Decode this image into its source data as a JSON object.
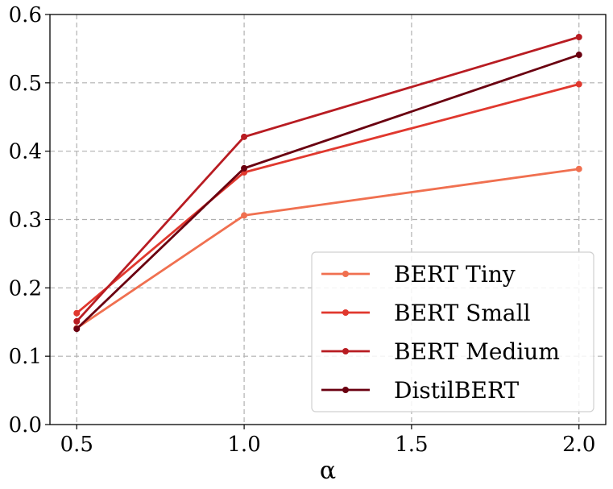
{
  "chart_data": {
    "type": "line",
    "title": "",
    "xlabel": "α",
    "ylabel": "",
    "x": [
      0.5,
      1.0,
      2.0
    ],
    "xlim": [
      0.42,
      2.08
    ],
    "ylim": [
      0.0,
      0.6
    ],
    "xticks": [
      0.5,
      1.0,
      1.5,
      2.0
    ],
    "xtick_labels": [
      "0.5",
      "1.0",
      "1.5",
      "2.0"
    ],
    "yticks": [
      0.0,
      0.1,
      0.2,
      0.3,
      0.4,
      0.5,
      0.6
    ],
    "ytick_labels": [
      "0.0",
      "0.1",
      "0.2",
      "0.3",
      "0.4",
      "0.5",
      "0.6"
    ],
    "grid": true,
    "legend_position": "lower-right",
    "series": [
      {
        "name": "BERT Tiny",
        "color": "#f07050",
        "values": [
          0.141,
          0.306,
          0.374
        ]
      },
      {
        "name": "BERT Small",
        "color": "#e0382e",
        "values": [
          0.163,
          0.369,
          0.498
        ]
      },
      {
        "name": "BERT Medium",
        "color": "#b81c22",
        "values": [
          0.151,
          0.421,
          0.567
        ]
      },
      {
        "name": "DistilBERT",
        "color": "#6a0010",
        "values": [
          0.14,
          0.375,
          0.541
        ]
      }
    ]
  }
}
